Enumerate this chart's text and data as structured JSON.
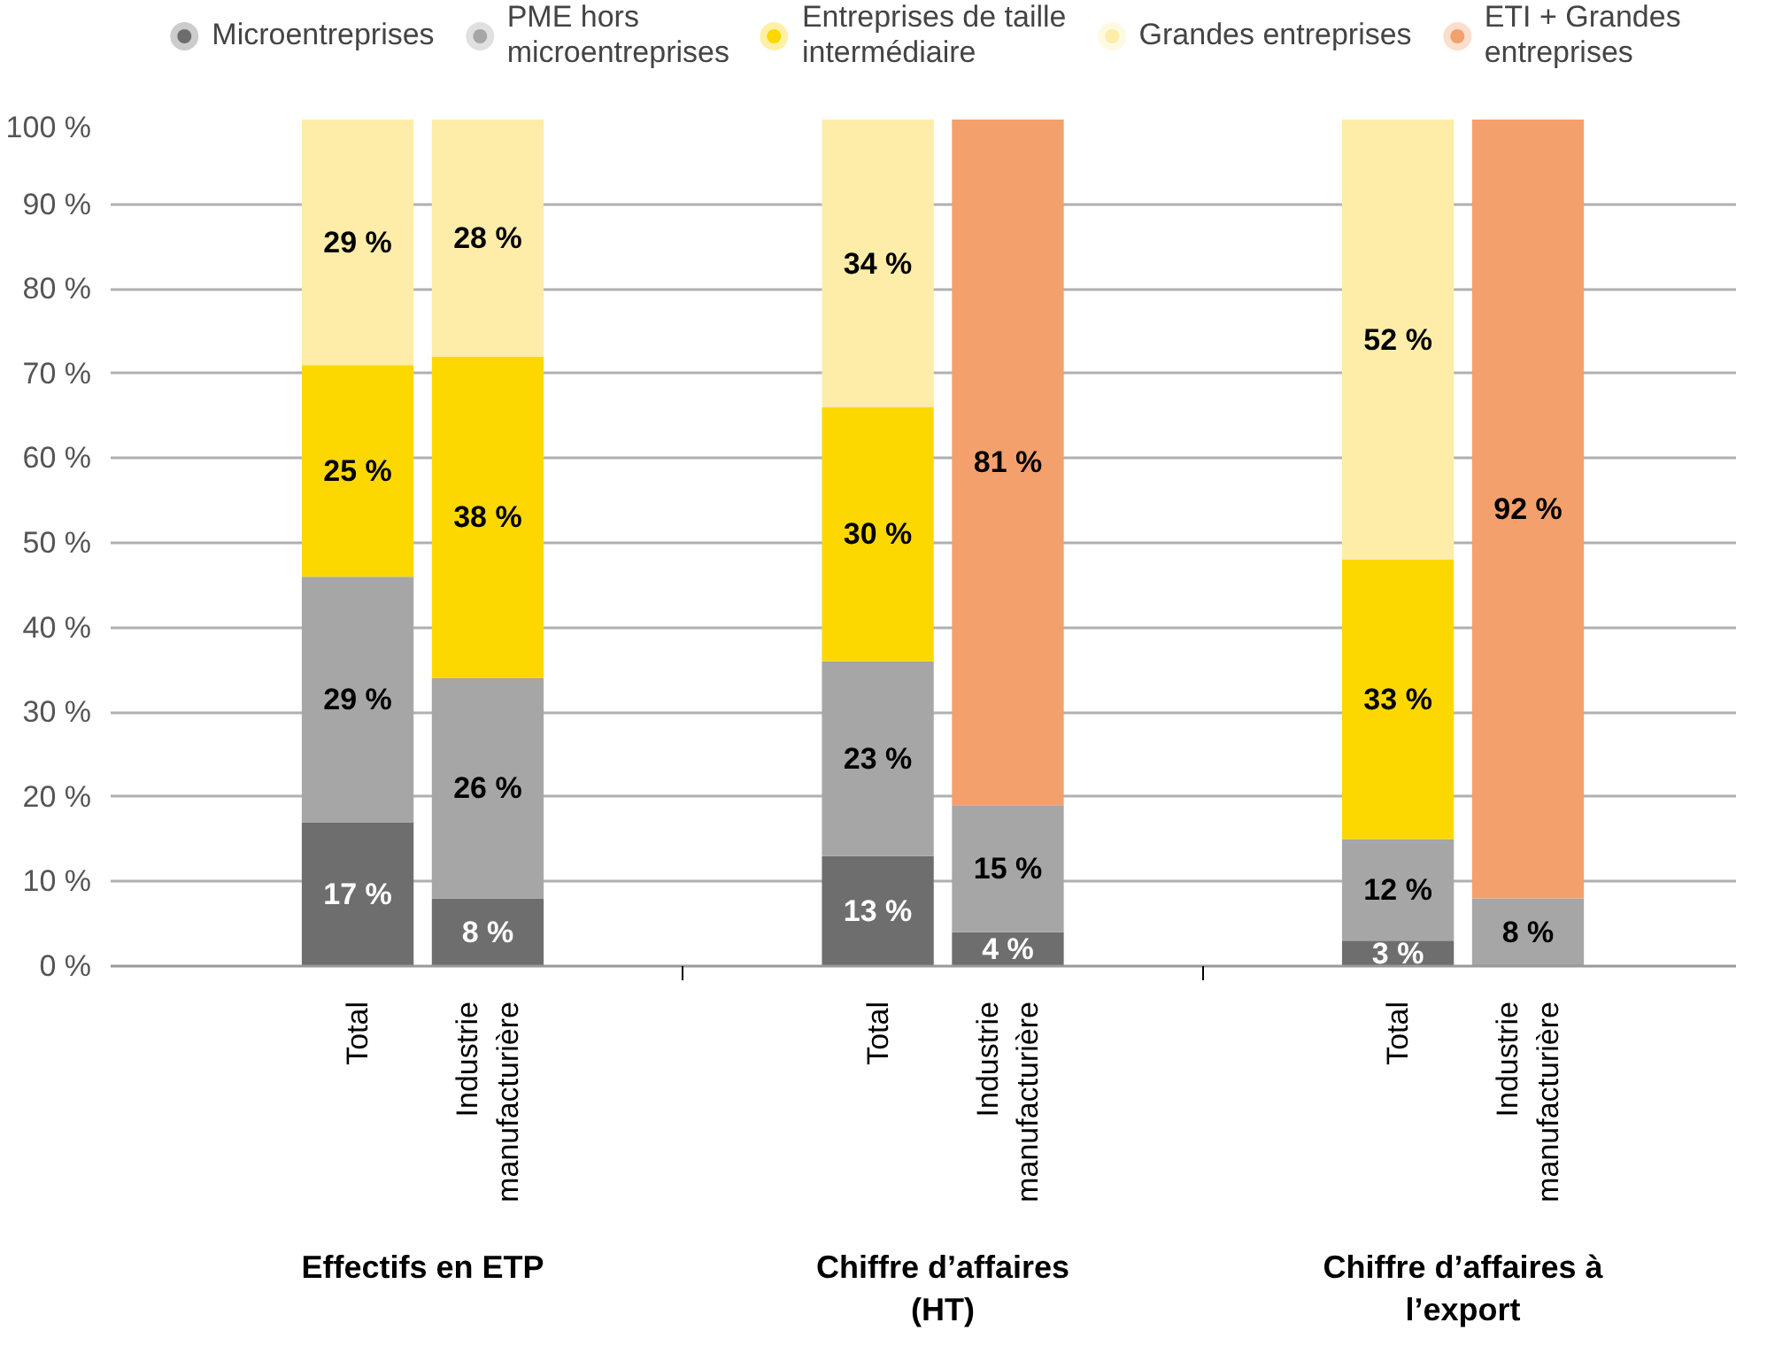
{
  "chart_data": {
    "type": "bar",
    "stacked": true,
    "categories": [
      "Total",
      "Industrie manufacturière",
      null,
      null,
      "Total",
      "Industrie manufacturière",
      null,
      null,
      "Total",
      "Industrie manufacturière"
    ],
    "series": [
      {
        "name": "Microentreprises",
        "color": "#6e6e6e",
        "values": [
          17,
          8,
          null,
          null,
          13,
          4,
          null,
          null,
          3,
          null
        ],
        "value_labels": [
          "17 %",
          "8 %",
          null,
          null,
          "13 %",
          "4 %",
          null,
          null,
          "3 %",
          null
        ]
      },
      {
        "name": "PME hors microentreprises",
        "color": "#a6a6a6",
        "values": [
          29,
          26,
          null,
          null,
          23,
          15,
          null,
          null,
          12,
          8
        ],
        "value_labels": [
          "29 %",
          "26 %",
          null,
          null,
          "23 %",
          "15 %",
          null,
          null,
          "12 %",
          "8 %"
        ]
      },
      {
        "name": "Entreprises de taille intermédiaire",
        "color": "#fdd800",
        "values": [
          25,
          38,
          null,
          null,
          30,
          null,
          null,
          null,
          33,
          null
        ],
        "value_labels": [
          "25 %",
          "38 %",
          null,
          null,
          "30 %",
          null,
          null,
          null,
          "33 %",
          null
        ]
      },
      {
        "name": "Grandes entreprises",
        "color": "#fdeda9",
        "values": [
          29,
          28,
          null,
          null,
          34,
          null,
          null,
          null,
          52,
          null
        ],
        "value_labels": [
          "29 %",
          "28 %",
          null,
          null,
          "34 %",
          null,
          null,
          null,
          "52 %",
          null
        ]
      },
      {
        "name": "ETI + Grandes entreprises",
        "color": "#f4a06c",
        "values": [
          null,
          null,
          null,
          null,
          null,
          81,
          null,
          null,
          null,
          92
        ],
        "value_labels": [
          null,
          null,
          null,
          null,
          null,
          "81 %",
          null,
          null,
          null,
          "92 %"
        ]
      }
    ],
    "ylim": [
      0,
      100
    ],
    "yticks": [
      {
        "value": 0,
        "label": "0 %"
      },
      {
        "value": 10,
        "label": "10 %"
      },
      {
        "value": 20,
        "label": "20 %"
      },
      {
        "value": 30,
        "label": "30 %"
      },
      {
        "value": 40,
        "label": "40 %"
      },
      {
        "value": 50,
        "label": "50 %"
      },
      {
        "value": 60,
        "label": "60 %"
      },
      {
        "value": 70,
        "label": "70 %"
      },
      {
        "value": 80,
        "label": "80 %"
      },
      {
        "value": 90,
        "label": "90 %"
      },
      {
        "value": 100,
        "label": "100 %"
      }
    ],
    "annotations": [
      "Effectifs en ETP",
      "Chiffre d’affaires (HT)",
      "Chiffre d’affaires à l’export"
    ],
    "grid": "y",
    "legend": "top"
  }
}
